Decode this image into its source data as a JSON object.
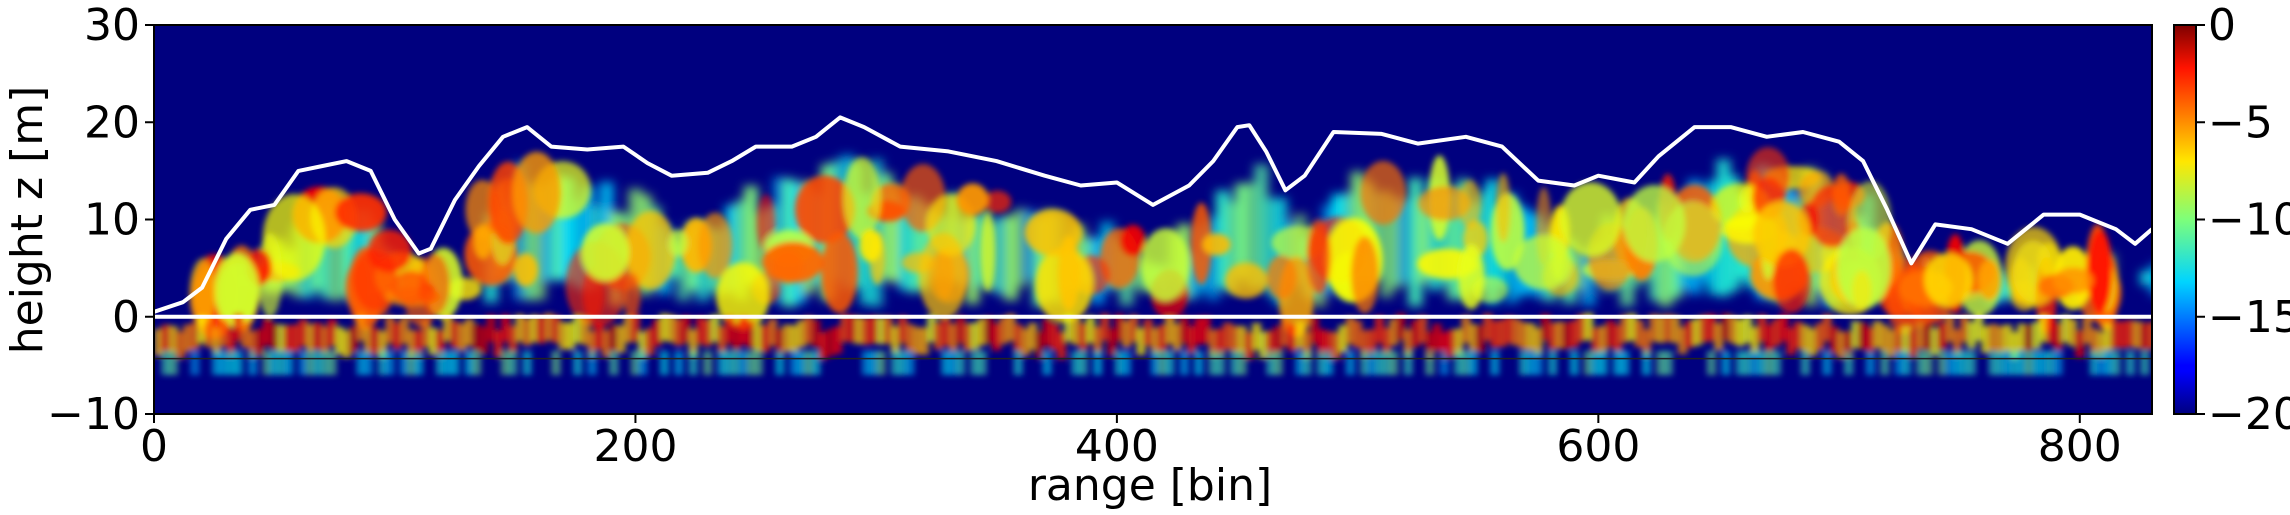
{
  "chart_data": {
    "type": "heatmap",
    "title": "",
    "xlabel": "range [bin]",
    "ylabel": "height z [m]",
    "xlim": [
      0,
      830
    ],
    "ylim": [
      -10,
      30
    ],
    "xticks": [
      0,
      200,
      400,
      600,
      800
    ],
    "yticks": [
      -10,
      0,
      10,
      20,
      30
    ],
    "colorbar": {
      "colormap": "jet",
      "range": [
        -20,
        0
      ],
      "ticks": [
        0,
        -5,
        -10,
        -15,
        -20
      ]
    },
    "series": [
      {
        "kind": "line",
        "color": "#ffffff",
        "points": [
          [
            0,
            0.5
          ],
          [
            12,
            1.5
          ],
          [
            20,
            3
          ],
          [
            30,
            8
          ],
          [
            40,
            11
          ],
          [
            50,
            11.5
          ],
          [
            60,
            15
          ],
          [
            70,
            15.5
          ],
          [
            80,
            16
          ],
          [
            90,
            15
          ],
          [
            100,
            10
          ],
          [
            110,
            6.5
          ],
          [
            115,
            7
          ],
          [
            125,
            12
          ],
          [
            135,
            15.5
          ],
          [
            145,
            18.5
          ],
          [
            155,
            19.5
          ],
          [
            165,
            17.5
          ],
          [
            180,
            17.2
          ],
          [
            195,
            17.5
          ],
          [
            205,
            15.8
          ],
          [
            215,
            14.5
          ],
          [
            230,
            14.8
          ],
          [
            240,
            16
          ],
          [
            250,
            17.5
          ],
          [
            265,
            17.5
          ],
          [
            275,
            18.5
          ],
          [
            285,
            20.5
          ],
          [
            295,
            19.5
          ],
          [
            310,
            17.5
          ],
          [
            330,
            17
          ],
          [
            350,
            16
          ],
          [
            370,
            14.5
          ],
          [
            385,
            13.5
          ],
          [
            400,
            13.8
          ],
          [
            415,
            11.5
          ],
          [
            430,
            13.5
          ],
          [
            440,
            16
          ],
          [
            450,
            19.5
          ],
          [
            455,
            19.7
          ],
          [
            462,
            17
          ],
          [
            470,
            13
          ],
          [
            478,
            14.5
          ],
          [
            490,
            19
          ],
          [
            510,
            18.8
          ],
          [
            525,
            17.8
          ],
          [
            545,
            18.5
          ],
          [
            560,
            17.5
          ],
          [
            575,
            14
          ],
          [
            590,
            13.5
          ],
          [
            600,
            14.5
          ],
          [
            615,
            13.8
          ],
          [
            625,
            16.5
          ],
          [
            640,
            19.5
          ],
          [
            655,
            19.5
          ],
          [
            670,
            18.5
          ],
          [
            685,
            19
          ],
          [
            700,
            18
          ],
          [
            710,
            16
          ],
          [
            720,
            11
          ],
          [
            730,
            5.5
          ],
          [
            740,
            9.5
          ],
          [
            755,
            9
          ],
          [
            770,
            7.5
          ],
          [
            785,
            10.5
          ],
          [
            800,
            10.5
          ],
          [
            815,
            9
          ],
          [
            823,
            7.5
          ],
          [
            830,
            9
          ]
        ]
      },
      {
        "kind": "line",
        "color": "#ffffff",
        "points": [
          [
            0,
            0
          ],
          [
            830,
            0
          ]
        ]
      },
      {
        "kind": "line",
        "color": "#222222",
        "points": [
          [
            0,
            -4.3
          ],
          [
            830,
            -4.3
          ]
        ]
      }
    ]
  }
}
